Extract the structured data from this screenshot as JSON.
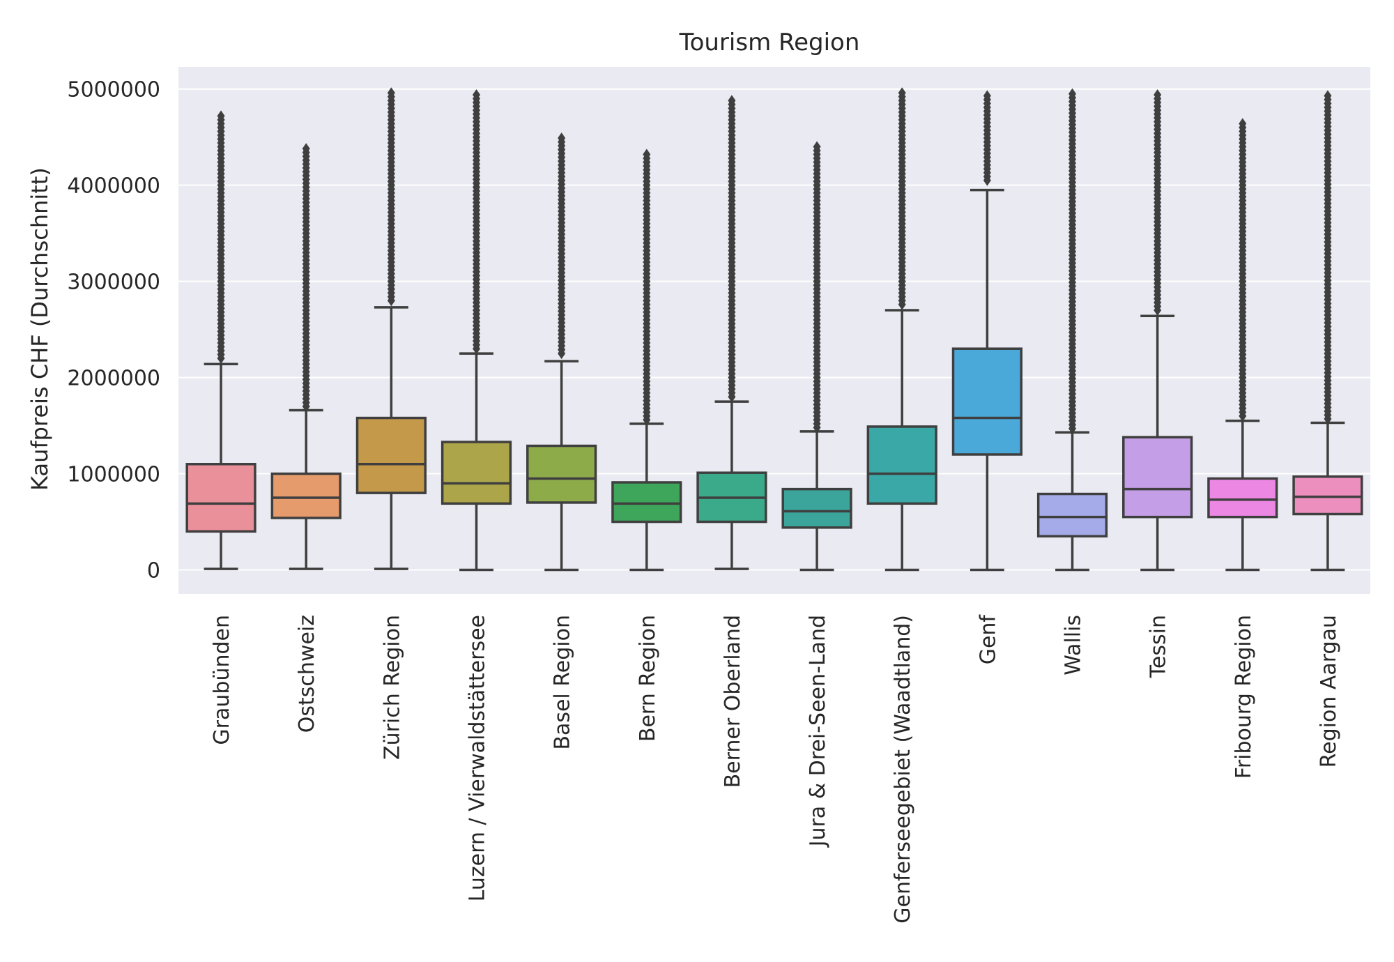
{
  "chart_data": {
    "type": "box",
    "title": "Tourism Region",
    "xlabel": "",
    "ylabel": "Kaufpreis CHF (Durchschnitt)",
    "ylim": [
      -250000,
      5230000
    ],
    "yticks": [
      0,
      1000000,
      2000000,
      3000000,
      4000000,
      5000000
    ],
    "ytick_labels": [
      "0",
      "1000000",
      "2000000",
      "3000000",
      "4000000",
      "5000000"
    ],
    "grid": true,
    "background": "#eaeaf2",
    "categories": [
      "Graubünden",
      "Ostschweiz",
      "Zürich Region",
      "Luzern / Vierwaldstättersee",
      "Basel Region",
      "Bern Region",
      "Berner Oberland",
      "Jura & Drei-Seen-Land",
      "Genferseegebiet (Waadtland)",
      "Genf",
      "Wallis",
      "Tessin",
      "Fribourg Region",
      "Region Aargau"
    ],
    "colors": [
      "#e9909a",
      "#e59b6b",
      "#c49a4a",
      "#ada54a",
      "#8eab4a",
      "#3ea65a",
      "#3aaa8a",
      "#3ba59b",
      "#3aa8a6",
      "#4aa9d8",
      "#a5abe8",
      "#c49ee6",
      "#ec87e4",
      "#ec8fbf"
    ],
    "boxes": [
      {
        "whisker_low": 10000,
        "q1": 400000,
        "median": 690000,
        "q3": 1100000,
        "whisker_high": 2140000,
        "outliers_from": 2200000,
        "outliers_to": 4750000
      },
      {
        "whisker_low": 10000,
        "q1": 540000,
        "median": 750000,
        "q3": 1000000,
        "whisker_high": 1660000,
        "outliers_from": 1700000,
        "outliers_to": 4400000
      },
      {
        "whisker_low": 10000,
        "q1": 800000,
        "median": 1100000,
        "q3": 1580000,
        "whisker_high": 2730000,
        "outliers_from": 2800000,
        "outliers_to": 4960000
      },
      {
        "whisker_low": 0,
        "q1": 690000,
        "median": 900000,
        "q3": 1330000,
        "whisker_high": 2250000,
        "outliers_from": 2300000,
        "outliers_to": 4960000
      },
      {
        "whisker_low": 0,
        "q1": 700000,
        "median": 950000,
        "q3": 1290000,
        "whisker_high": 2170000,
        "outliers_from": 2250000,
        "outliers_to": 4500000
      },
      {
        "whisker_low": 0,
        "q1": 500000,
        "median": 690000,
        "q3": 910000,
        "whisker_high": 1520000,
        "outliers_from": 1560000,
        "outliers_to": 4350000
      },
      {
        "whisker_low": 10000,
        "q1": 500000,
        "median": 750000,
        "q3": 1010000,
        "whisker_high": 1750000,
        "outliers_from": 1800000,
        "outliers_to": 4900000
      },
      {
        "whisker_low": 0,
        "q1": 440000,
        "median": 610000,
        "q3": 840000,
        "whisker_high": 1440000,
        "outliers_from": 1480000,
        "outliers_to": 4400000
      },
      {
        "whisker_low": 0,
        "q1": 690000,
        "median": 1000000,
        "q3": 1490000,
        "whisker_high": 2700000,
        "outliers_from": 2760000,
        "outliers_to": 4960000
      },
      {
        "whisker_low": 0,
        "q1": 1200000,
        "median": 1580000,
        "q3": 2300000,
        "whisker_high": 3950000,
        "outliers_from": 4050000,
        "outliers_to": 4960000
      },
      {
        "whisker_low": 0,
        "q1": 350000,
        "median": 550000,
        "q3": 790000,
        "whisker_high": 1430000,
        "outliers_from": 1470000,
        "outliers_to": 4960000
      },
      {
        "whisker_low": 0,
        "q1": 550000,
        "median": 840000,
        "q3": 1380000,
        "whisker_high": 2640000,
        "outliers_from": 2700000,
        "outliers_to": 4960000
      },
      {
        "whisker_low": 0,
        "q1": 550000,
        "median": 730000,
        "q3": 950000,
        "whisker_high": 1550000,
        "outliers_from": 1600000,
        "outliers_to": 4650000
      },
      {
        "whisker_low": 0,
        "q1": 580000,
        "median": 760000,
        "q3": 970000,
        "whisker_high": 1530000,
        "outliers_from": 1570000,
        "outliers_to": 4950000
      }
    ]
  }
}
